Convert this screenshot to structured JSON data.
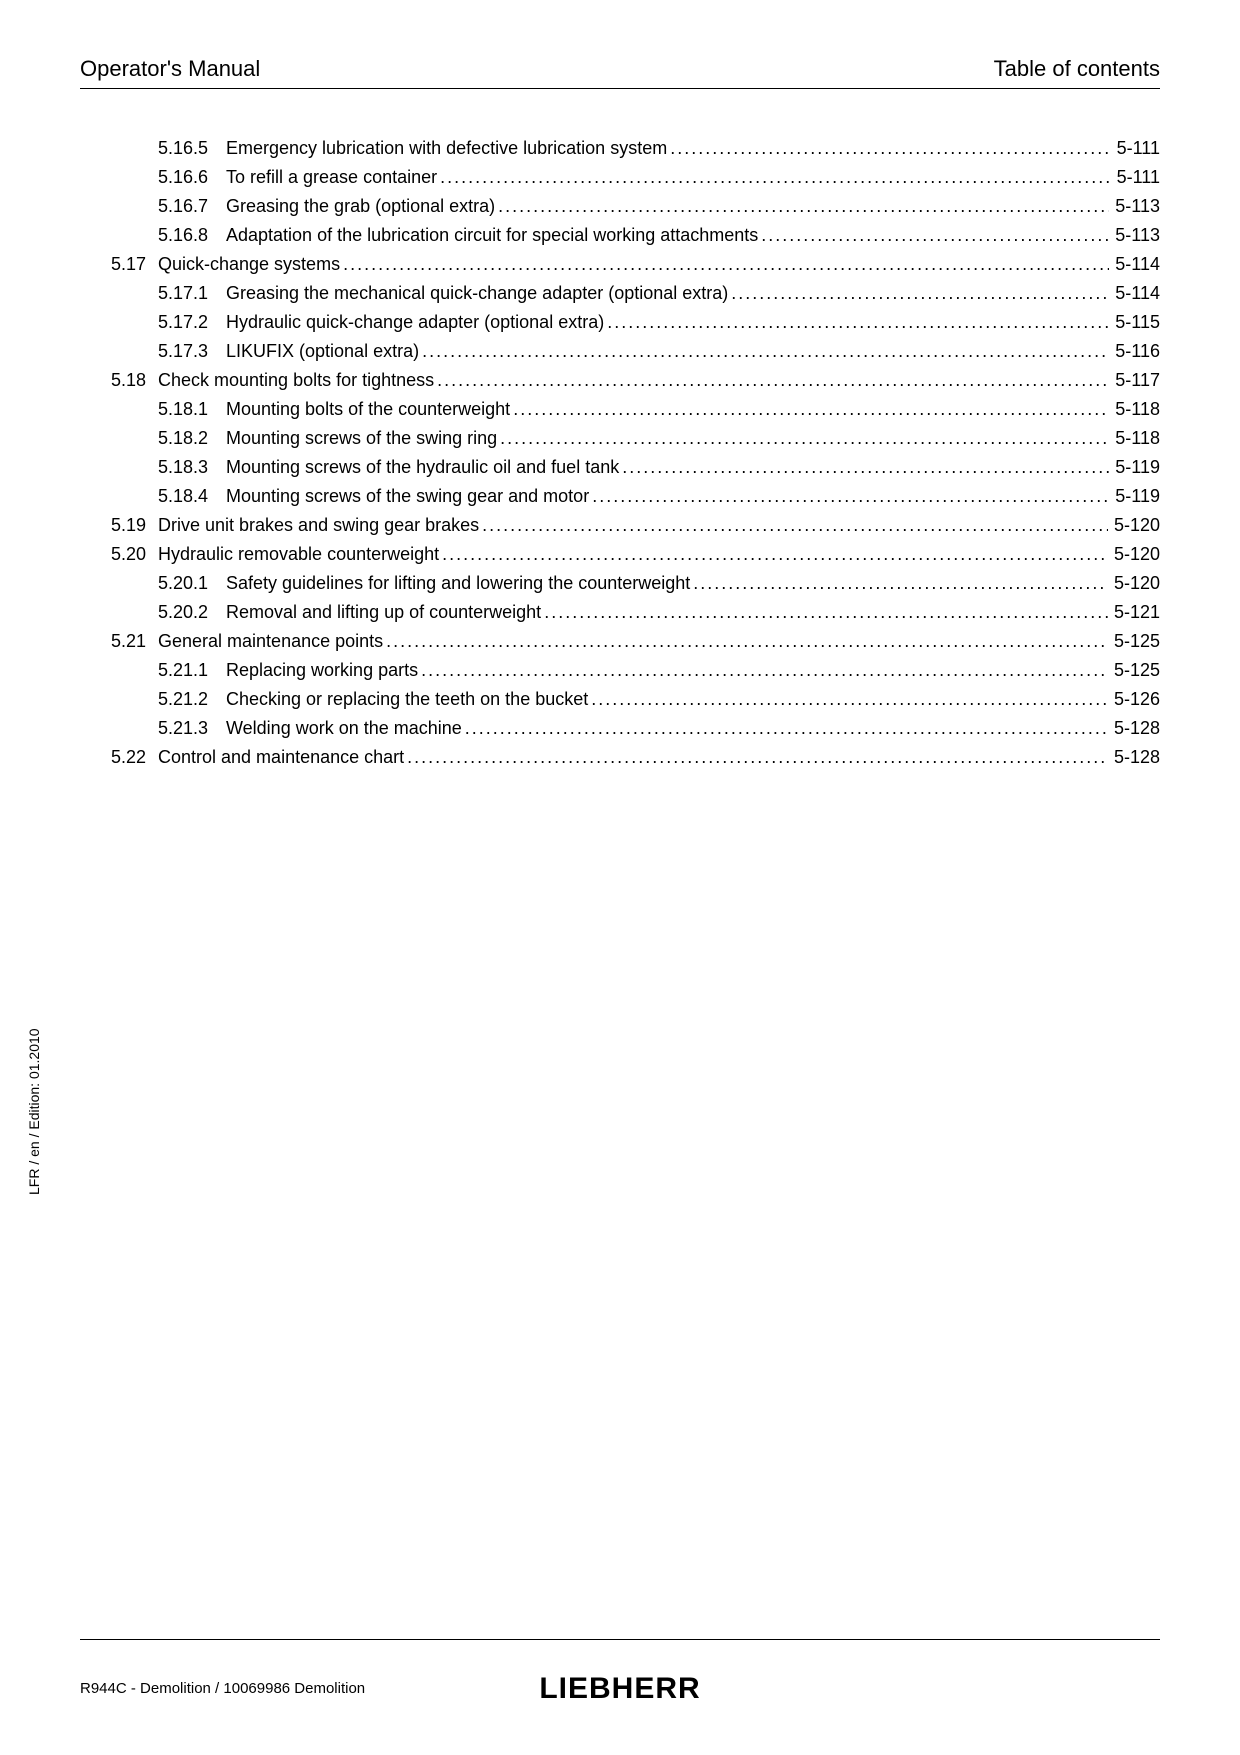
{
  "header": {
    "left": "Operator's Manual",
    "right": "Table of contents"
  },
  "toc": [
    {
      "section": "",
      "sub": "5.16.5",
      "title": "Emergency lubrication with defective lubrication system",
      "page": "5-111"
    },
    {
      "section": "",
      "sub": "5.16.6",
      "title": "To refill a grease container",
      "page": "5-111"
    },
    {
      "section": "",
      "sub": "5.16.7",
      "title": "Greasing the grab (optional extra)",
      "page": "5-113"
    },
    {
      "section": "",
      "sub": "5.16.8",
      "title": "Adaptation of the lubrication circuit for special working attachments",
      "page": "5-113"
    },
    {
      "section": "5.17",
      "sub": "",
      "title": "Quick-change systems",
      "page": "5-114"
    },
    {
      "section": "",
      "sub": "5.17.1",
      "title": "Greasing the mechanical quick-change adapter (optional extra)",
      "page": "5-114"
    },
    {
      "section": "",
      "sub": "5.17.2",
      "title": "Hydraulic quick-change adapter (optional extra)",
      "page": "5-115"
    },
    {
      "section": "",
      "sub": "5.17.3",
      "title": "LIKUFIX (optional extra)",
      "page": "5-116"
    },
    {
      "section": "5.18",
      "sub": "",
      "title": "Check mounting bolts for tightness",
      "page": "5-117"
    },
    {
      "section": "",
      "sub": "5.18.1",
      "title": "Mounting bolts of the counterweight",
      "page": "5-118"
    },
    {
      "section": "",
      "sub": "5.18.2",
      "title": "Mounting screws of the swing ring",
      "page": "5-118"
    },
    {
      "section": "",
      "sub": "5.18.3",
      "title": "Mounting screws of the hydraulic oil and fuel tank",
      "page": "5-119"
    },
    {
      "section": "",
      "sub": "5.18.4",
      "title": "Mounting screws of the swing gear and motor",
      "page": "5-119"
    },
    {
      "section": "5.19",
      "sub": "",
      "title": "Drive unit brakes and swing gear brakes",
      "page": "5-120"
    },
    {
      "section": "5.20",
      "sub": "",
      "title": "Hydraulic removable counterweight",
      "page": "5-120"
    },
    {
      "section": "",
      "sub": "5.20.1",
      "title": "Safety guidelines for lifting and lowering the counterweight",
      "page": "5-120"
    },
    {
      "section": "",
      "sub": "5.20.2",
      "title": "Removal and lifting up of counterweight",
      "page": "5-121"
    },
    {
      "section": "5.21",
      "sub": "",
      "title": "General maintenance points",
      "page": "5-125"
    },
    {
      "section": "",
      "sub": "5.21.1",
      "title": "Replacing working parts",
      "page": "5-125"
    },
    {
      "section": "",
      "sub": "5.21.2",
      "title": "Checking or replacing the teeth on the bucket",
      "page": "5-126"
    },
    {
      "section": "",
      "sub": "5.21.3",
      "title": "Welding work on the machine",
      "page": "5-128"
    },
    {
      "section": "5.22",
      "sub": "",
      "title": "Control and maintenance chart",
      "page": "5-128"
    }
  ],
  "sidetext": "LFR / en / Edition: 01.2010",
  "footer": {
    "left": "R944C - Demolition / 10069986 Demolition",
    "brand": "LIEBHERR"
  },
  "style": {
    "page_bg": "#ffffff",
    "text_color": "#000000",
    "header_fontsize": 22,
    "toc_fontsize": 18,
    "footer_fontsize": 15,
    "brand_fontsize": 30,
    "sidetext_fontsize": 14,
    "rule_color": "#000000"
  }
}
